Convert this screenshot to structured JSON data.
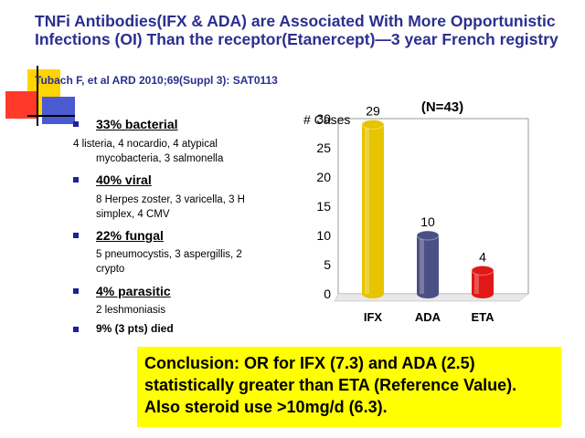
{
  "slide": {
    "title": "TNFi Antibodies(IFX & ADA) are Associated With More Opportunistic Infections (OI) Than the receptor(Etanercept)—3 year French registry",
    "citation": "Tubach F, et al ARD 2010;69(Suppl 3): SAT0113"
  },
  "bullets": [
    {
      "label": "33% bacterial",
      "detail_lines": [
        "4 listeria, 4 nocardio, 4 atypical",
        "mycobacteria, 3 salmonella"
      ]
    },
    {
      "label": "40% viral",
      "detail_lines": [
        "8 Herpes zoster, 3 varicella, 3 H",
        "simplex, 4 CMV"
      ]
    },
    {
      "label": "22% fungal",
      "detail_lines": [
        "5 pneumocystis, 3 aspergillis, 2",
        "crypto"
      ]
    },
    {
      "label": "4% parasitic",
      "detail_lines": [
        "2 leshmoniasis"
      ]
    }
  ],
  "died_text": "9% (3 pts) died",
  "chart_data": {
    "type": "bar",
    "title": "(N=43)",
    "ylabel": "# Cases",
    "categories": [
      "IFX",
      "ADA",
      "ETA"
    ],
    "values": [
      29,
      10,
      4
    ],
    "data_labels": [
      "29",
      "10",
      "4"
    ],
    "ylim": [
      0,
      30
    ],
    "yticks": [
      "0",
      "5",
      "10",
      "15",
      "20",
      "25",
      "30"
    ],
    "grid": false,
    "bar_colors": [
      "#e6c400",
      "#4a4f86",
      "#e01818"
    ]
  },
  "conclusion": "Conclusion: OR for IFX (7.3) and ADA (2.5) statistically greater than ETA (Reference Value).  Also steroid use  >10mg/d (6.3).",
  "colors": {
    "title": "#2b2f8f",
    "conclusion_bg": "#ffff00",
    "bullet": "#1f1fa0"
  }
}
